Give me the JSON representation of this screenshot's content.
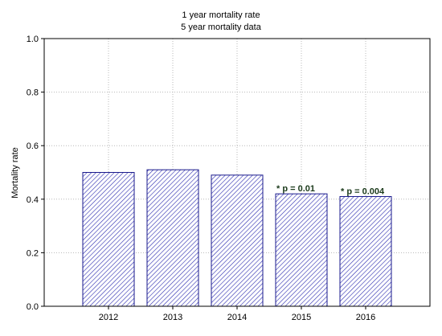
{
  "chart_data": {
    "type": "bar",
    "title": "1 year mortality rate",
    "subtitle": "5 year mortality data",
    "xlabel": "",
    "ylabel": "Mortality rate",
    "categories": [
      "2012",
      "2013",
      "2014",
      "2015",
      "2016"
    ],
    "values": [
      0.5,
      0.51,
      0.49,
      0.42,
      0.41
    ],
    "annotations": [
      "",
      "",
      "",
      "* p = 0.01",
      "* p = 0.004"
    ],
    "ylim": [
      0.0,
      1.0
    ],
    "yticks": [
      0.0,
      0.2,
      0.4,
      0.6,
      0.8,
      1.0
    ],
    "ytick_labels": [
      "0.0",
      "0.2",
      "0.4",
      "0.6",
      "0.8",
      "1.0"
    ],
    "grid": true,
    "bar_fill": "hatched",
    "colors": {
      "bar_edge": "#1a1a8c",
      "bar_hatch": "#2b2bb0",
      "grid": "#b8b8b8",
      "annotation": "#1b3a1b"
    }
  }
}
